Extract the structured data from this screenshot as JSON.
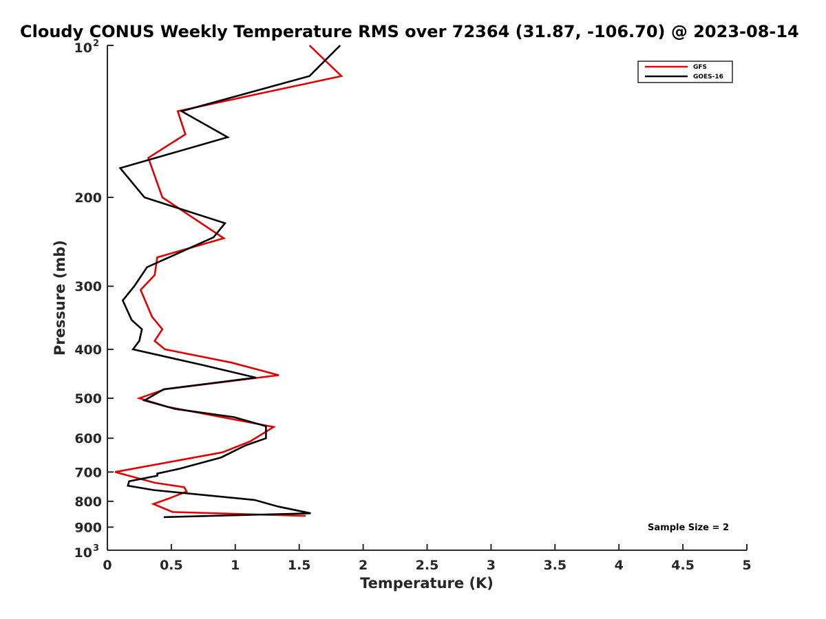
{
  "chart_data": {
    "type": "line",
    "title": "Cloudy CONUS Weekly Temperature RMS over 72364 (31.87, -106.70) @ 2023-08-14",
    "xlabel": "Temperature (K)",
    "ylabel": "Pressure (mb)",
    "xlim": [
      0,
      5
    ],
    "ylim": [
      100,
      1000
    ],
    "yscale": "log",
    "y_reversed": true,
    "grid": false,
    "legend_position": "top-right",
    "x_ticks": [
      "0",
      "0.5",
      "1",
      "1.5",
      "2",
      "2.5",
      "3",
      "3.5",
      "4",
      "4.5",
      "5"
    ],
    "y_ticks": [
      {
        "value": 100,
        "base": "10",
        "exp": "2"
      },
      {
        "value": 200,
        "label": "200"
      },
      {
        "value": 300,
        "label": "300"
      },
      {
        "value": 400,
        "label": "400"
      },
      {
        "value": 500,
        "label": "500"
      },
      {
        "value": 600,
        "label": "600"
      },
      {
        "value": 700,
        "label": "700"
      },
      {
        "value": 800,
        "label": "800"
      },
      {
        "value": 900,
        "label": "900"
      },
      {
        "value": 1000,
        "base": "10",
        "exp": "3"
      }
    ],
    "annotation": "Sample Size = 2",
    "series": [
      {
        "name": "GFS",
        "color": "#e00000",
        "points": [
          [
            1.58,
            100
          ],
          [
            1.83,
            115
          ],
          [
            0.55,
            135
          ],
          [
            0.61,
            150
          ],
          [
            0.32,
            167
          ],
          [
            0.43,
            200
          ],
          [
            0.91,
            241
          ],
          [
            0.39,
            263
          ],
          [
            0.37,
            285
          ],
          [
            0.26,
            305
          ],
          [
            0.35,
            345
          ],
          [
            0.43,
            365
          ],
          [
            0.37,
            385
          ],
          [
            0.45,
            400
          ],
          [
            0.97,
            425
          ],
          [
            1.34,
            450
          ],
          [
            0.45,
            480
          ],
          [
            0.25,
            500
          ],
          [
            0.47,
            520
          ],
          [
            1.3,
            570
          ],
          [
            1.12,
            608
          ],
          [
            0.9,
            640
          ],
          [
            0.06,
            700
          ],
          [
            0.37,
            735
          ],
          [
            0.6,
            750
          ],
          [
            0.62,
            765
          ],
          [
            0.48,
            790
          ],
          [
            0.36,
            810
          ],
          [
            0.51,
            840
          ],
          [
            1.55,
            855
          ]
        ]
      },
      {
        "name": "GOES-16",
        "color": "#000000",
        "points": [
          [
            1.82,
            100
          ],
          [
            1.58,
            115
          ],
          [
            0.58,
            135
          ],
          [
            0.94,
            152
          ],
          [
            0.1,
            175
          ],
          [
            0.29,
            200
          ],
          [
            0.92,
            225
          ],
          [
            0.83,
            240
          ],
          [
            0.31,
            275
          ],
          [
            0.21,
            300
          ],
          [
            0.12,
            320
          ],
          [
            0.19,
            350
          ],
          [
            0.27,
            365
          ],
          [
            0.25,
            385
          ],
          [
            0.2,
            400
          ],
          [
            0.75,
            430
          ],
          [
            1.16,
            455
          ],
          [
            0.44,
            480
          ],
          [
            0.29,
            505
          ],
          [
            0.53,
            525
          ],
          [
            0.99,
            545
          ],
          [
            1.24,
            568
          ],
          [
            1.24,
            600
          ],
          [
            1.08,
            620
          ],
          [
            0.89,
            655
          ],
          [
            0.56,
            690
          ],
          [
            0.39,
            705
          ],
          [
            0.39,
            712
          ],
          [
            0.17,
            730
          ],
          [
            0.16,
            745
          ],
          [
            0.36,
            760
          ],
          [
            1.15,
            795
          ],
          [
            1.34,
            820
          ],
          [
            1.59,
            845
          ],
          [
            0.44,
            860
          ]
        ]
      }
    ]
  }
}
